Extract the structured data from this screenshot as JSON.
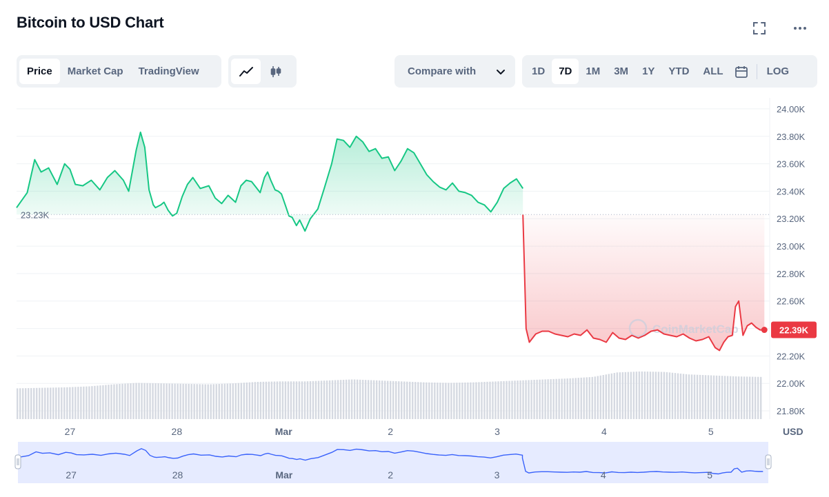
{
  "header": {
    "title": "Bitcoin to USD Chart"
  },
  "tabs": {
    "type": [
      {
        "label": "Price",
        "active": true
      },
      {
        "label": "Market Cap",
        "active": false
      },
      {
        "label": "TradingView",
        "active": false
      }
    ],
    "compare_label": "Compare with",
    "ranges": [
      {
        "label": "1D",
        "active": false
      },
      {
        "label": "7D",
        "active": true
      },
      {
        "label": "1M",
        "active": false
      },
      {
        "label": "3M",
        "active": false
      },
      {
        "label": "1Y",
        "active": false
      },
      {
        "label": "YTD",
        "active": false
      },
      {
        "label": "ALL",
        "active": false
      }
    ],
    "log_label": "LOG"
  },
  "icons": {
    "expand": "expand-icon",
    "more": "more-horizontal-icon",
    "line": "line-chart-icon",
    "candle": "candlestick-icon",
    "calendar": "calendar-icon",
    "chevron": "chevron-down-icon",
    "watermark": "coinmarketcap-logo-icon"
  },
  "colors": {
    "up": "#16c784",
    "down": "#ea3943",
    "volume": "#d5d9e1",
    "navigator_line": "#3861fb",
    "navigator_fill": "#e6ebff"
  },
  "chart_data": {
    "type": "area",
    "title": "Bitcoin to USD Chart",
    "unit": "USD",
    "watermark": "CoinMarketCap",
    "x_tick_labels": [
      "27",
      "28",
      "Mar",
      "2",
      "3",
      "4",
      "5"
    ],
    "x_range_days": [
      26.5,
      33.55
    ],
    "y_tick_labels": [
      "24.00K",
      "23.80K",
      "23.60K",
      "23.40K",
      "23.20K",
      "23.00K",
      "22.80K",
      "22.60K",
      "22.40K",
      "22.20K",
      "22.00K",
      "21.80K"
    ],
    "ylim": [
      21740,
      24080
    ],
    "reference_price": 23230,
    "reference_label": "23.23K",
    "current_price": 22390,
    "current_label": "22.39K",
    "y_position": "right",
    "grid": true,
    "series": [
      {
        "values_x_days": [
          26.5,
          26.6,
          26.67,
          26.73,
          26.8,
          26.88,
          26.95,
          27.0,
          27.05,
          27.12,
          27.2,
          27.28,
          27.35,
          27.42,
          27.5,
          27.55,
          27.62,
          27.66,
          27.7,
          27.74,
          27.78,
          27.8,
          27.85,
          27.88,
          27.92,
          27.96,
          28.0,
          28.05,
          28.1,
          28.15,
          28.22,
          28.3,
          28.36,
          28.42,
          28.48,
          28.55,
          28.6,
          28.65,
          28.7,
          28.74,
          28.78,
          28.82,
          28.85,
          28.88,
          28.92,
          28.95,
          28.98,
          29.02,
          29.05,
          29.08,
          29.12,
          29.15,
          29.2,
          29.25,
          29.32,
          29.38,
          29.45,
          29.5,
          29.56,
          29.62,
          29.68,
          29.74,
          29.8,
          29.86,
          29.92,
          29.98,
          30.04,
          30.1,
          30.16,
          30.22,
          30.28,
          30.34,
          30.4,
          30.46,
          30.52,
          30.58,
          30.64,
          30.7,
          30.76,
          30.82,
          30.88,
          30.94,
          31.0,
          31.06,
          31.12,
          31.18,
          31.24
        ],
        "values_y_usd": [
          23280,
          23390,
          23630,
          23540,
          23570,
          23450,
          23600,
          23560,
          23450,
          23440,
          23480,
          23410,
          23500,
          23550,
          23480,
          23400,
          23700,
          23830,
          23720,
          23410,
          23300,
          23280,
          23300,
          23320,
          23260,
          23220,
          23240,
          23360,
          23450,
          23500,
          23420,
          23440,
          23350,
          23310,
          23370,
          23320,
          23440,
          23480,
          23470,
          23430,
          23390,
          23500,
          23540,
          23480,
          23410,
          23400,
          23380,
          23290,
          23220,
          23210,
          23150,
          23190,
          23110,
          23200,
          23270,
          23420,
          23600,
          23780,
          23770,
          23720,
          23800,
          23760,
          23690,
          23710,
          23640,
          23650,
          23550,
          23620,
          23710,
          23680,
          23600,
          23520,
          23470,
          23430,
          23410,
          23460,
          23400,
          23390,
          23370,
          23320,
          23300,
          23250,
          23320,
          23420,
          23460,
          23490,
          23420
        ]
      },
      {
        "values_x_days": [
          31.24,
          31.27,
          31.3,
          31.36,
          31.42,
          31.48,
          31.54,
          31.6,
          31.66,
          31.72,
          31.78,
          31.84,
          31.9,
          31.96,
          32.02,
          32.08,
          32.14,
          32.2,
          32.26,
          32.32,
          32.38,
          32.44,
          32.5,
          32.56,
          32.62,
          32.68,
          32.74,
          32.8,
          32.86,
          32.92,
          32.98,
          33.04,
          33.08,
          33.12,
          33.16,
          33.2,
          33.23,
          33.26,
          33.3,
          33.34,
          33.38,
          33.42,
          33.46,
          33.5
        ],
        "values_y_usd": [
          23230,
          22400,
          22300,
          22360,
          22380,
          22380,
          22360,
          22350,
          22340,
          22360,
          22350,
          22390,
          22330,
          22320,
          22300,
          22370,
          22330,
          22320,
          22350,
          22330,
          22350,
          22380,
          22390,
          22360,
          22350,
          22340,
          22360,
          22330,
          22310,
          22320,
          22340,
          22260,
          22240,
          22300,
          22340,
          22350,
          22560,
          22600,
          22350,
          22420,
          22440,
          22410,
          22390,
          22390
        ]
      }
    ],
    "volume_relative": [
      0.62,
      0.63,
      0.64,
      0.66,
      0.7,
      0.73,
      0.72,
      0.71,
      0.7,
      0.72,
      0.75,
      0.76,
      0.76,
      0.78,
      0.8,
      0.78,
      0.76,
      0.74,
      0.73,
      0.74,
      0.76,
      0.78,
      0.8,
      0.82,
      0.85,
      0.94,
      0.96,
      0.95,
      0.9,
      0.88,
      0.86,
      0.85
    ]
  }
}
